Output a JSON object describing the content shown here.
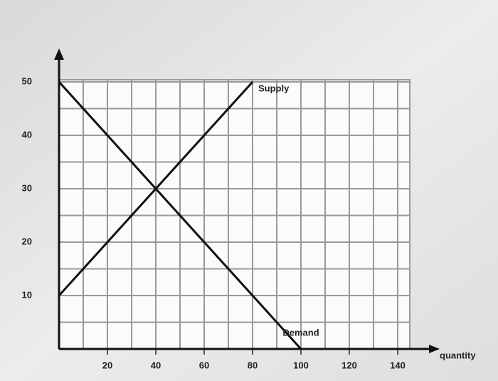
{
  "chart_data": {
    "type": "line",
    "series": [
      {
        "name": "Supply",
        "color": "#111111",
        "x": [
          0,
          80
        ],
        "values": [
          10,
          50
        ]
      },
      {
        "name": "Demand",
        "color": "#111111",
        "x": [
          0,
          100
        ],
        "values": [
          50,
          0
        ]
      }
    ],
    "xlabel": "quantity",
    "xlim": [
      0,
      145
    ],
    "xticks": [
      20,
      40,
      60,
      80,
      100,
      120,
      140
    ],
    "ylim": [
      0,
      50
    ],
    "yticks": [
      10,
      20,
      30,
      40,
      50
    ],
    "grid": true
  }
}
